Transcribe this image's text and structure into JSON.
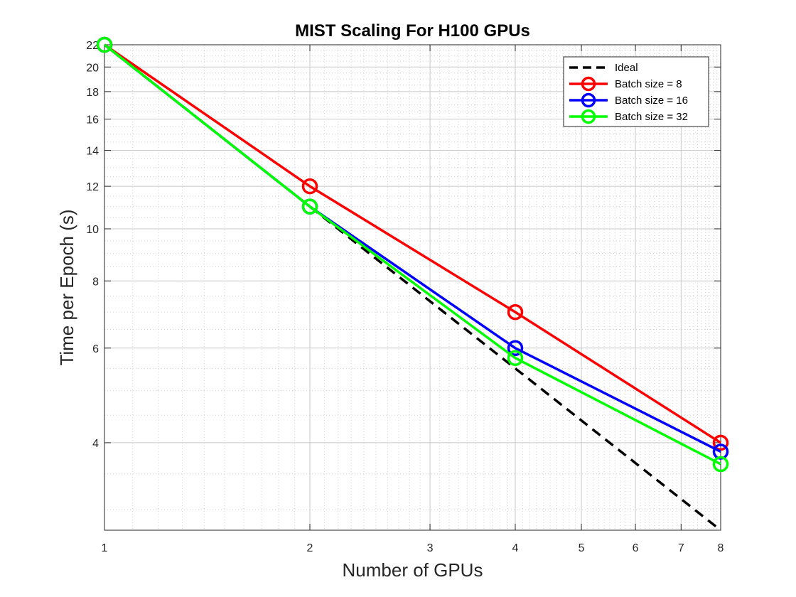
{
  "chart_data": {
    "type": "line",
    "title": "MIST Scaling For H100 GPUs",
    "xlabel": "Number of GPUs",
    "ylabel": "Time per Epoch (s)",
    "xscale": "log",
    "yscale": "log",
    "xlim": [
      1,
      8
    ],
    "ylim": [
      2.75,
      22
    ],
    "xticks": [
      1,
      2,
      3,
      4,
      5,
      6,
      7,
      8
    ],
    "yticks": [
      4,
      6,
      8,
      10,
      12,
      14,
      16,
      18,
      20,
      22
    ],
    "grid": true,
    "legend_location": "top-right",
    "series": [
      {
        "name": "Ideal",
        "color": "#000000",
        "style": "dashed",
        "marker": "none",
        "x": [
          1,
          2,
          4,
          8
        ],
        "y": [
          22,
          11,
          5.5,
          2.75
        ]
      },
      {
        "name": "Batch size = 8",
        "color": "#ff0000",
        "style": "solid",
        "marker": "circle",
        "x": [
          1,
          2,
          4,
          8
        ],
        "y": [
          22,
          12,
          7,
          4
        ]
      },
      {
        "name": "Batch size = 16",
        "color": "#0000ff",
        "style": "solid",
        "marker": "circle",
        "x": [
          1,
          2,
          4,
          8
        ],
        "y": [
          22,
          11,
          6,
          3.85
        ]
      },
      {
        "name": "Batch size = 32",
        "color": "#00ff00",
        "style": "solid",
        "marker": "circle",
        "x": [
          1,
          2,
          4,
          8
        ],
        "y": [
          22,
          11,
          5.75,
          3.65
        ]
      }
    ]
  }
}
